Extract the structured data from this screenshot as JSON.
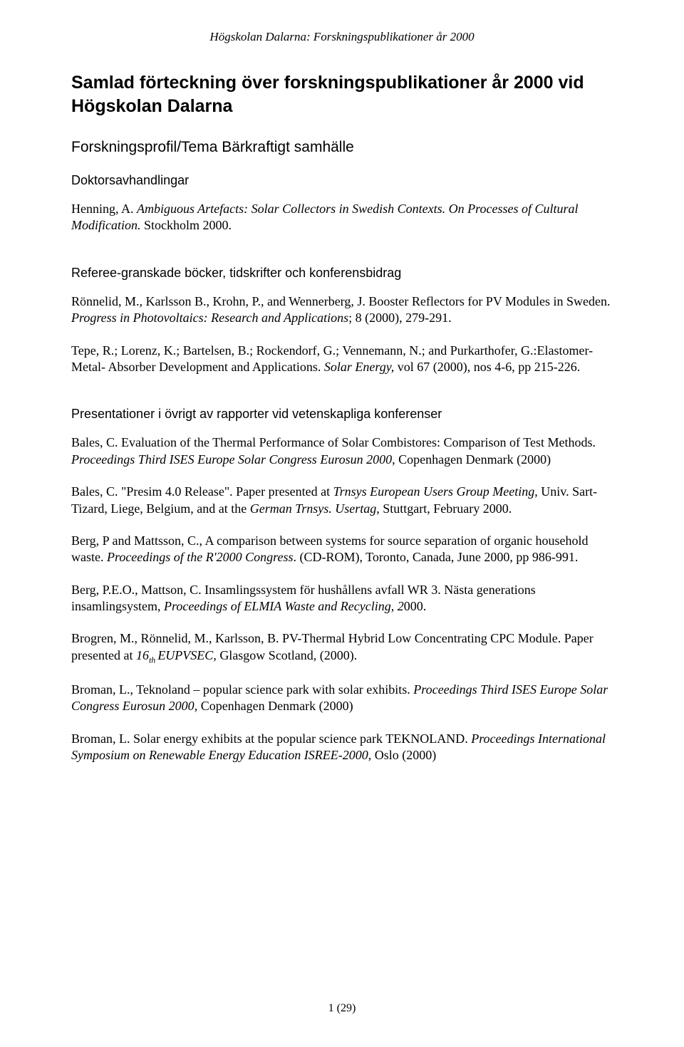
{
  "header": "Högskolan Dalarna: Forskningspublikationer år 2000",
  "mainTitle": "Samlad förteckning över forskningspublikationer år 2000 vid Högskolan Dalarna",
  "sectionHeading": "Forskningsprofil/Tema Bärkraftigt samhälle",
  "sub1": "Doktorsavhandlingar",
  "entry1a": "Henning, A. ",
  "entry1b": "Ambiguous Artefacts: Solar Collectors in Swedish Contexts. On Processes of Cultural Modification.",
  "entry1c": " Stockholm 2000.",
  "sub2": "Referee-granskade böcker, tidskrifter och konferensbidrag",
  "entry2a": "Rönnelid, M., Karlsson B., Krohn, P., and Wennerberg, J. Booster Reflectors for PV Modules in Sweden. ",
  "entry2b": "Progress in Photovoltaics: Research and Applications",
  "entry2c": "; 8 (2000), 279-291.",
  "entry3a": "Tepe, R.; Lorenz, K.; Bartelsen, B.; Rockendorf, G.; Vennemann, N.; and Purkarthofer, G.:Elastomer- Metal- Absorber Development and Applications. ",
  "entry3b": "Solar Energy,",
  "entry3c": " vol 67 (2000), nos 4-6, pp 215-226.",
  "sub3": "Presentationer i övrigt av rapporter vid vetenskapliga konferenser",
  "entry4a": "Bales, C. Evaluation of the Thermal Performance of Solar Combistores: Comparison of Test Methods. ",
  "entry4b": "Proceedings Third ISES Europe Solar Congress Eurosun 2000",
  "entry4c": ", Copenhagen Denmark (2000)",
  "entry5a": "Bales, C. \"Presim 4.0 Release\". Paper presented at ",
  "entry5b": "Trnsys European Users Group Meeting",
  "entry5c": ", Univ. Sart-Tizard, Liege, Belgium, and at the ",
  "entry5d": "German Trnsys. Usertag",
  "entry5e": ", Stuttgart, February 2000.",
  "entry6a": "Berg, P and Mattsson, C., A comparison between systems for source separation of organic household waste. ",
  "entry6b": "Proceedings of the R'2000 Congress",
  "entry6c": ". (CD-ROM), Toronto, Canada, June 2000, pp 986-991.",
  "entry7a": "Berg, P.E.O., Mattson, C. Insamlingssystem för hushållens avfall WR 3. Nästa generations insamlingsystem, ",
  "entry7b": "Proceedings of ELMIA Waste and Recycling, 2",
  "entry7c": "000.",
  "entry8a": "Brogren, M., Rönnelid, M., Karlsson, B. PV-Thermal Hybrid Low Concentrating CPC Module. Paper presented at ",
  "entry8b": "16",
  "entry8sub": "th ",
  "entry8c": "EUPVSEC",
  "entry8d": ", Glasgow Scotland, (2000).",
  "entry9a": "Broman, L., Teknoland – popular science park with solar exhibits. ",
  "entry9b": "Proceedings Third ISES Europe Solar Congress Eurosun 2000",
  "entry9c": ", Copenhagen Denmark (2000)",
  "entry10a": "Broman, L. Solar energy exhibits at the popular science park TEKNOLAND. ",
  "entry10b": "Proceedings International Symposium on Renewable Energy Education ISREE-2000",
  "entry10c": ", Oslo (2000)",
  "footer": "1 (29)"
}
